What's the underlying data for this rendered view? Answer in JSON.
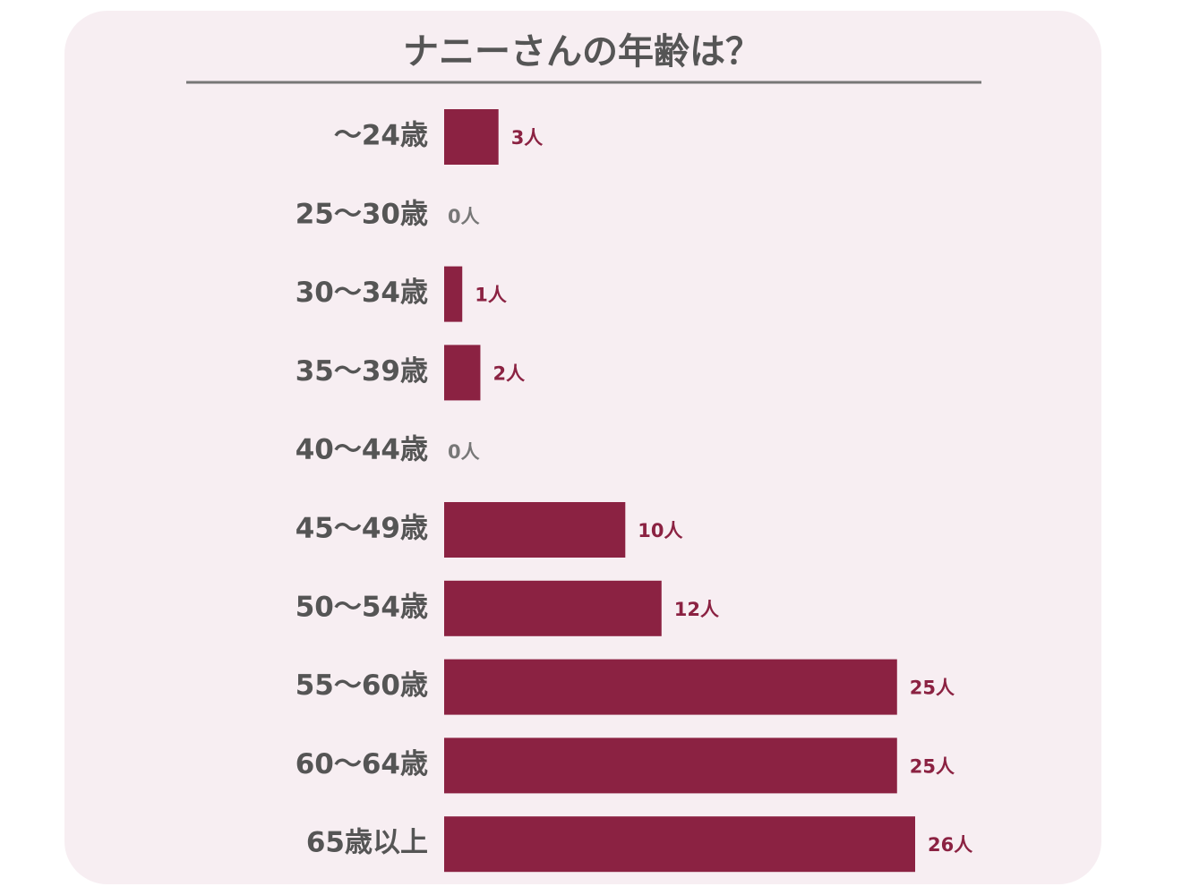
{
  "chart_data": {
    "type": "bar",
    "orientation": "horizontal",
    "title": "ナニーさんの年齢は？",
    "categories": [
      "〜24歳",
      "25〜30歳",
      "30〜34歳",
      "35〜39歳",
      "40〜44歳",
      "45〜49歳",
      "50〜54歳",
      "55〜60歳",
      "60〜64歳",
      "65歳以上"
    ],
    "values": [
      3,
      0,
      1,
      2,
      0,
      10,
      12,
      25,
      25,
      26
    ],
    "value_labels": [
      "3人",
      "0人",
      "1人",
      "2人",
      "0人",
      "10人",
      "12人",
      "25人",
      "25人",
      "26人"
    ],
    "color": "#8b2242"
  }
}
